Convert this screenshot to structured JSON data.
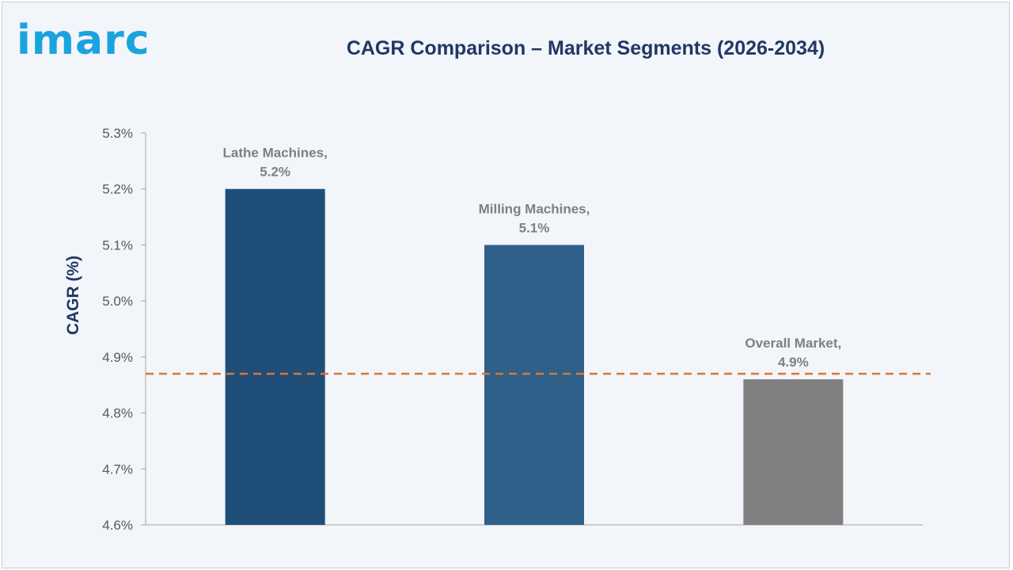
{
  "brand": {
    "logo_text": "imarc",
    "logo_color": "#1aa3dd"
  },
  "chart_data": {
    "type": "bar",
    "title": "CAGR Comparison – Market Segments (2026-2034)",
    "xlabel": "",
    "ylabel": "CAGR (%)",
    "ylim": [
      4.6,
      5.3
    ],
    "yticks": [
      "4.6%",
      "4.7%",
      "4.8%",
      "4.9%",
      "5.0%",
      "5.1%",
      "5.2%",
      "5.3%"
    ],
    "grid": false,
    "legend": "none",
    "categories": [
      "Lathe Machines",
      "Milling Machines",
      "Overall Market"
    ],
    "values": [
      5.2,
      5.1,
      4.86
    ],
    "data_labels": [
      [
        "Lathe Machines,",
        "5.2%"
      ],
      [
        "Milling Machines,",
        "5.1%"
      ],
      [
        "Overall Market,",
        "4.9%"
      ]
    ],
    "bar_colors": [
      "#1f4e79",
      "#2e6089",
      "#808080"
    ],
    "reference_line": {
      "value": 4.87,
      "color": "#e0762f",
      "style": "dashed"
    }
  }
}
